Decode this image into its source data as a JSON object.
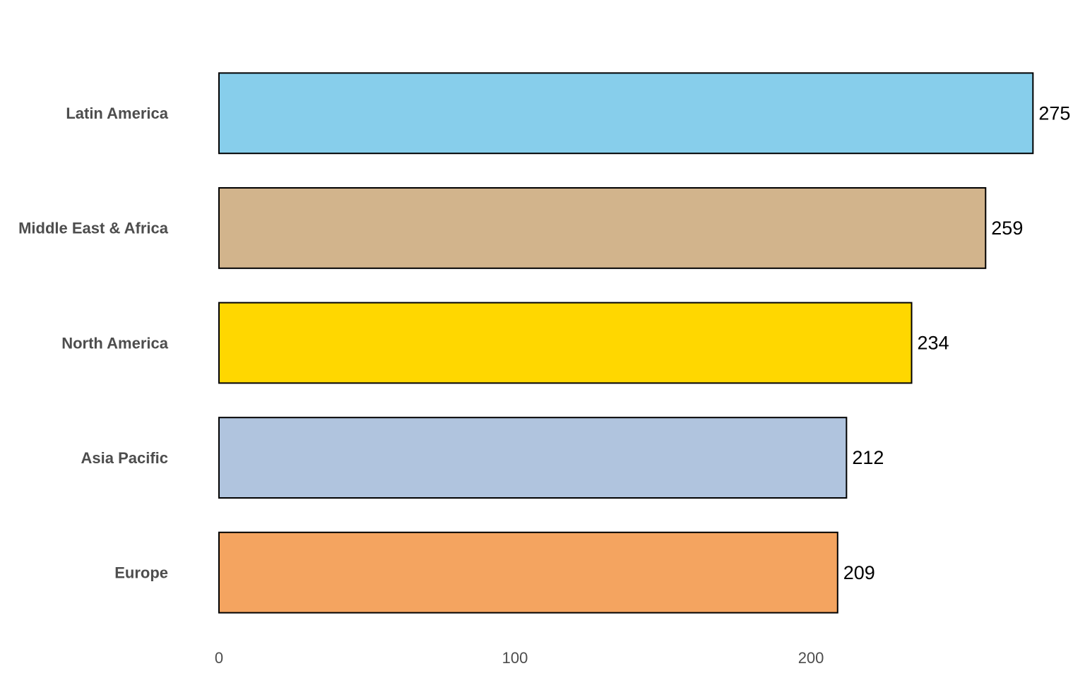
{
  "chart_data": {
    "type": "bar",
    "orientation": "horizontal",
    "categories": [
      "Latin America",
      "Middle East & Africa",
      "North America",
      "Asia Pacific",
      "Europe"
    ],
    "values": [
      275,
      259,
      234,
      212,
      209
    ],
    "colors": [
      "#87CEEB",
      "#D2B48C",
      "#FFD700",
      "#B0C4DE",
      "#F4A460"
    ],
    "xlim": [
      0,
      289
    ],
    "xticks": [
      0,
      100,
      200
    ],
    "grid": false
  }
}
